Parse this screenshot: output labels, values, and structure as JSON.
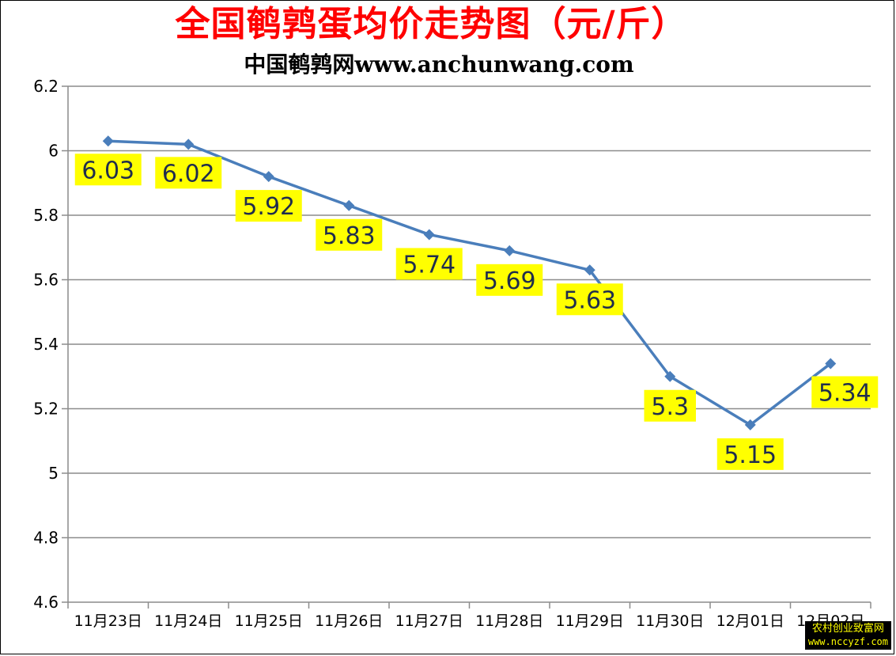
{
  "chart_data": {
    "type": "line",
    "title": "全国鹌鹑蛋均价走势图（元/斤）",
    "subtitle": "中国鹌鹑网www.anchunwang.com",
    "categories": [
      "11月23日",
      "11月24日",
      "11月25日",
      "11月26日",
      "11月27日",
      "11月28日",
      "11月29日",
      "11月30日",
      "12月01日",
      "12月02日"
    ],
    "series": [
      {
        "values": [
          6.03,
          6.02,
          5.92,
          5.83,
          5.74,
          5.69,
          5.63,
          5.3,
          5.15,
          5.34
        ]
      }
    ],
    "data_labels": [
      "6.03",
      "6.02",
      "5.92",
      "5.83",
      "5.74",
      "5.69",
      "5.63",
      "5.3",
      "5.15",
      "5.34"
    ],
    "ylim": [
      4.6,
      6.2
    ],
    "yticks": [
      "4.6",
      "4.8",
      "5",
      "5.2",
      "5.4",
      "5.6",
      "5.8",
      "6",
      "6.2"
    ],
    "grid": true,
    "line_color": "#4a7ebb",
    "label_bg_color": "#ffff00"
  },
  "watermark": {
    "line1": "农村创业致富网",
    "line2": "www.ncсyzf.com"
  }
}
